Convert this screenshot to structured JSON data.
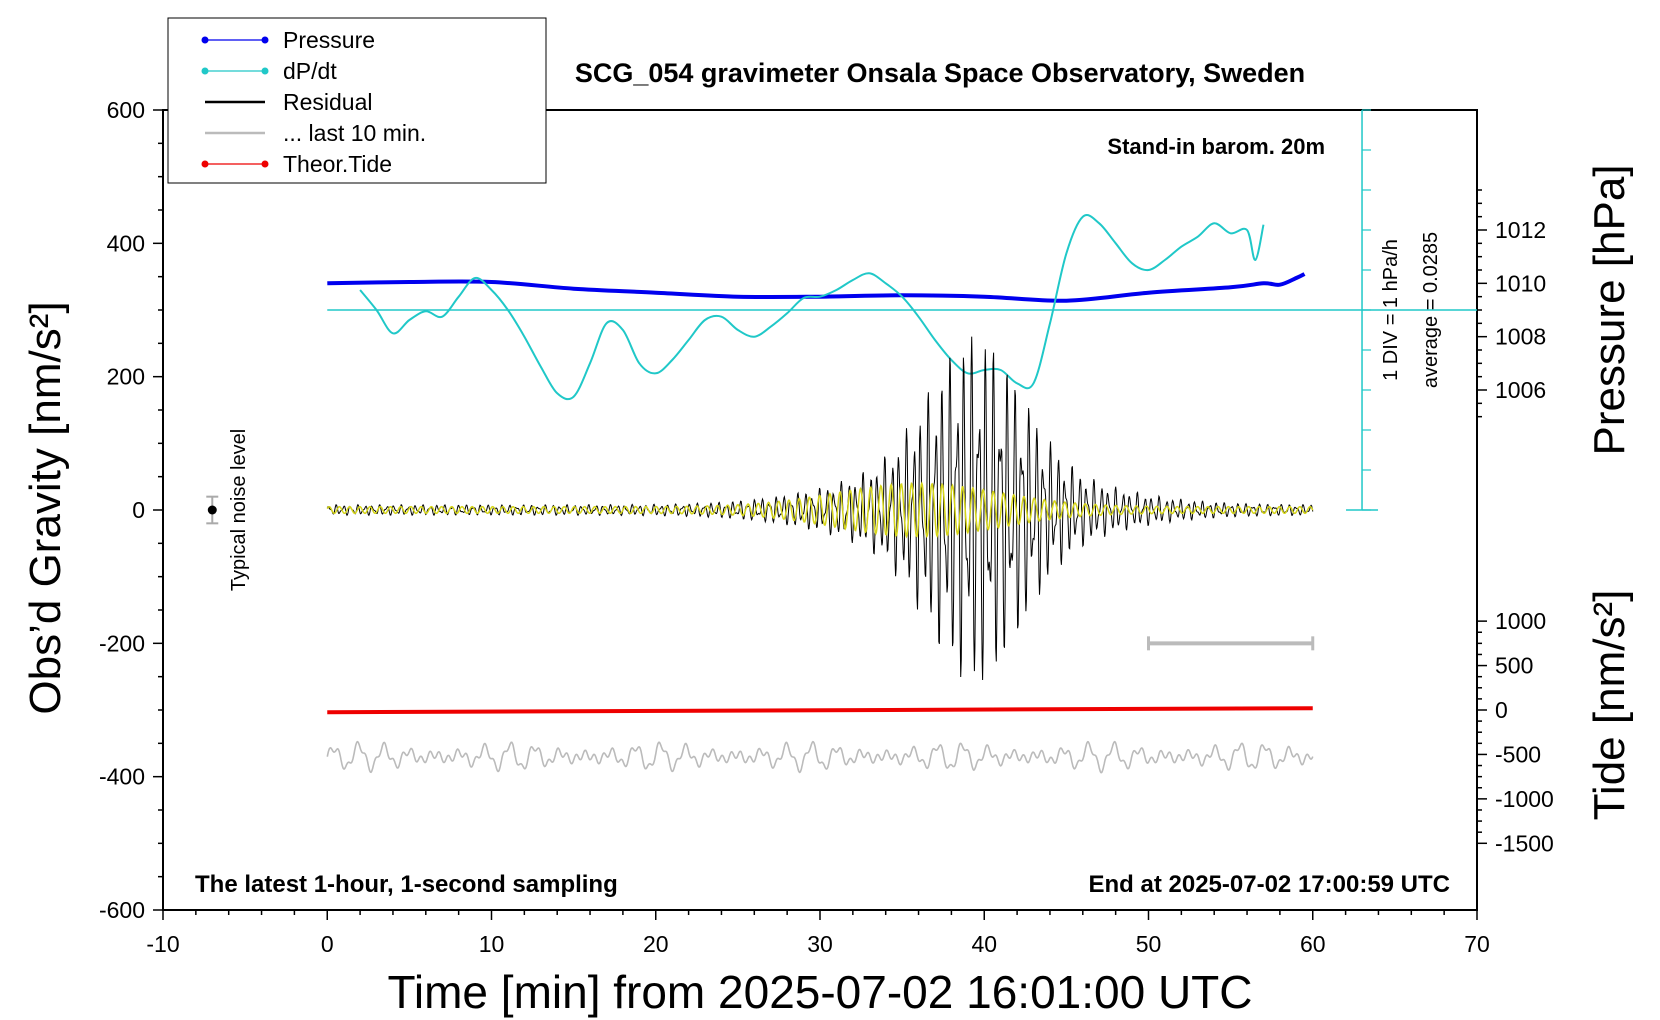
{
  "chart_data": {
    "type": "line",
    "title": "SCG_054 gravimeter Onsala Space Observatory, Sweden",
    "xlabel": "Time [min] from 2025-07-02 16:01:00 UTC",
    "ylabel_left": "Obs’d Gravity [nm/s²]",
    "ylabel_right_top": "Pressure [hPa]",
    "ylabel_right_bottom": "Tide [nm/s²]",
    "xlim": [
      -10,
      70
    ],
    "ylim": [
      -600,
      600
    ],
    "x_ticks": [
      "-10",
      "0",
      "10",
      "20",
      "30",
      "40",
      "50",
      "60",
      "70"
    ],
    "y_ticks": [
      "600",
      "400",
      "200",
      "0",
      "-200",
      "-400",
      "-600"
    ],
    "pressure_ticks": [
      "1012",
      "1010",
      "1008",
      "1006"
    ],
    "tide_ticks": [
      "1000",
      "500",
      "0",
      "-500",
      "-1000",
      "-1500"
    ],
    "legend": {
      "position": "top-left",
      "items": [
        {
          "label": "Pressure",
          "color": "#0000ee",
          "style": "line-dot"
        },
        {
          "label": "dP/dt",
          "color": "#20c8c8",
          "style": "line-dot"
        },
        {
          "label": "Residual",
          "color": "#000000",
          "style": "line"
        },
        {
          "label": "... last 10 min.",
          "color": "#bbbbbb",
          "style": "line"
        },
        {
          "label": "Theor.Tide",
          "color": "#ee0000",
          "style": "line-dot"
        }
      ]
    },
    "annotations": {
      "stand_in": "Stand-in barom. 20m",
      "div_scale": "1 DIV = 1 hPa/h",
      "average": "average = 0.0285",
      "noise": "Typical noise level",
      "bottom_left": "The latest 1-hour, 1-second sampling",
      "bottom_right": "End at 2025-07-02 17:00:59 UTC"
    },
    "series": [
      {
        "name": "Pressure",
        "unit": "hPa",
        "x": [
          0,
          5,
          10,
          15,
          20,
          25,
          30,
          35,
          40,
          45,
          50,
          55,
          57,
          58,
          59,
          59.5
        ],
        "values": [
          1010.0,
          1010.05,
          1010.05,
          1009.8,
          1009.65,
          1009.5,
          1009.5,
          1009.55,
          1009.5,
          1009.35,
          1009.65,
          1009.85,
          1010.0,
          1009.95,
          1010.2,
          1010.35
        ]
      },
      {
        "name": "dP/dt",
        "unit": "nm/s²",
        "x": [
          2,
          3,
          4,
          5,
          6,
          7,
          8,
          9,
          10,
          11,
          12,
          13,
          14,
          15,
          16,
          17,
          18,
          19,
          20,
          21,
          22,
          23,
          24,
          25,
          26,
          27,
          28,
          29,
          30,
          31,
          32,
          33,
          34,
          35,
          36,
          37,
          38,
          39,
          40,
          41,
          42,
          43,
          44,
          45,
          46,
          47,
          48,
          49,
          50,
          51,
          52,
          53,
          54,
          55,
          56,
          56.5,
          57
        ],
        "values": [
          330,
          300,
          265,
          285,
          298,
          290,
          320,
          348,
          330,
          300,
          260,
          215,
          175,
          170,
          220,
          280,
          270,
          220,
          205,
          225,
          255,
          285,
          290,
          270,
          260,
          275,
          295,
          318,
          320,
          330,
          345,
          355,
          340,
          320,
          290,
          255,
          225,
          205,
          210,
          210,
          190,
          190,
          280,
          385,
          440,
          430,
          400,
          370,
          360,
          375,
          395,
          410,
          430,
          415,
          420,
          375,
          428
        ]
      },
      {
        "name": "Theor.Tide",
        "unit": "nm/s²",
        "x": [
          0,
          60
        ],
        "values": [
          -25,
          20
        ]
      }
    ],
    "scale_bar": {
      "x": [
        50,
        60
      ],
      "y": -200
    },
    "noise_marker": {
      "x": -7,
      "y": 0,
      "range": 20
    }
  }
}
